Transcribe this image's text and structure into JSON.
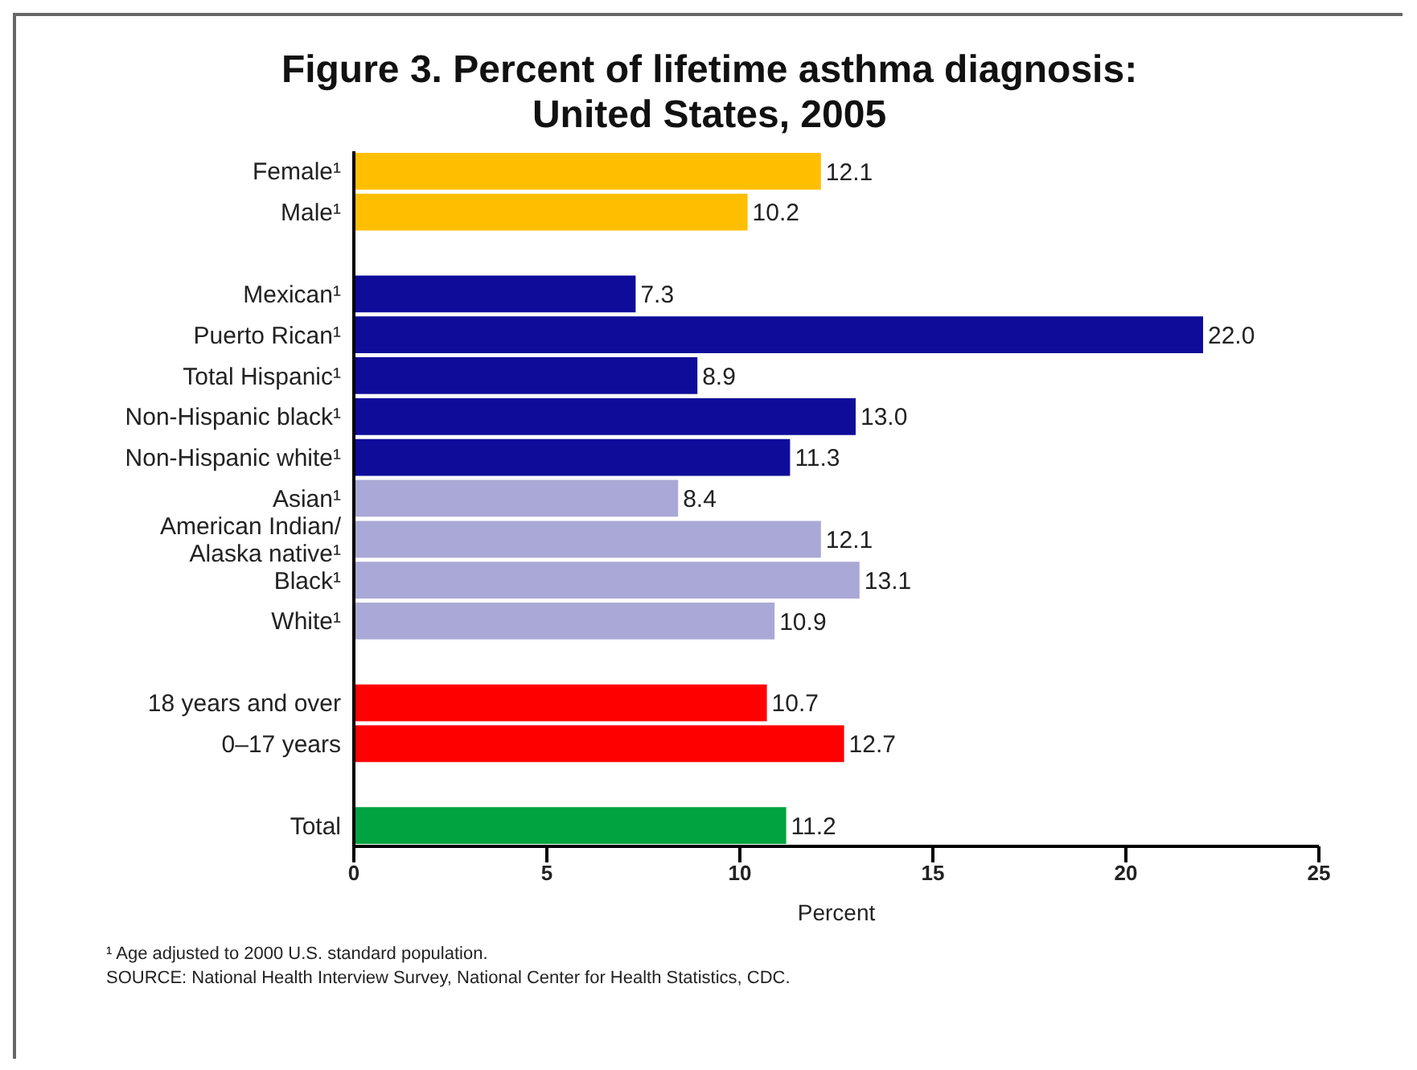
{
  "chart_data": {
    "type": "bar",
    "orientation": "horizontal",
    "title": "Figure 3. Percent of lifetime asthma diagnosis:\nUnited States, 2005",
    "xlabel": "Percent",
    "categories": [
      "Female¹",
      "Male¹",
      null,
      "Mexican¹",
      "Puerto Rican¹",
      "Total Hispanic¹",
      "Non-Hispanic black¹",
      "Non-Hispanic white¹",
      "Asian¹",
      "American Indian/\nAlaska native¹",
      "Black¹",
      "White¹",
      null,
      "18 years and over",
      "0–17 years",
      null,
      "Total"
    ],
    "values": [
      12.1,
      10.2,
      null,
      7.3,
      22.0,
      8.9,
      13.0,
      11.3,
      8.4,
      12.1,
      13.1,
      10.9,
      null,
      10.7,
      12.7,
      null,
      11.2
    ],
    "value_labels": [
      "12.1",
      "10.2",
      null,
      "7.3",
      "22.0",
      "8.9",
      "13.0",
      "11.3",
      "8.4",
      "12.1",
      "13.1",
      "10.9",
      null,
      "10.7",
      "12.7",
      null,
      "11.2"
    ],
    "colors": [
      "#ffbf00",
      "#ffbf00",
      null,
      "#0f0c9a",
      "#0f0c9a",
      "#0f0c9a",
      "#0f0c9a",
      "#0f0c9a",
      "#aaa8d6",
      "#aaa8d6",
      "#aaa8d6",
      "#aaa8d6",
      null,
      "#ff0000",
      "#ff0000",
      null,
      "#00a33f"
    ],
    "xlim": [
      0,
      25
    ],
    "xticks": [
      0,
      5,
      10,
      15,
      20,
      25
    ],
    "grid": false,
    "legend": false,
    "annotations": [
      "¹ Age adjusted to 2000 U.S. standard population.",
      "SOURCE: National Health Interview Survey, National Center for Health Statistics, CDC."
    ]
  }
}
